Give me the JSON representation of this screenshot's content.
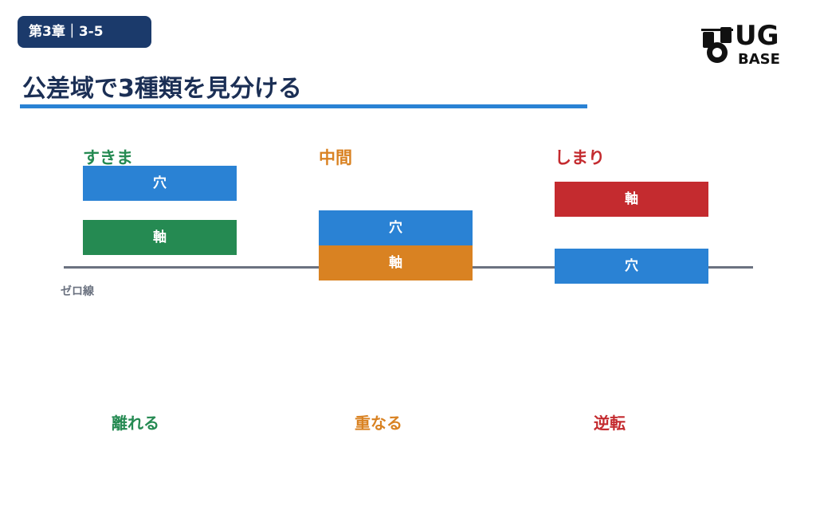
{
  "header": {
    "badge": "第3章｜3-5",
    "title": "公差域で3種類を見分ける",
    "logo": {
      "top": "UG",
      "bottom": "BASE"
    }
  },
  "columns": [
    {
      "label": "すきま",
      "boxes": [
        "穴",
        "軸"
      ],
      "caption": "離れる"
    },
    {
      "label": "中間",
      "boxes": [
        "穴",
        "軸"
      ],
      "caption": "重なる"
    },
    {
      "label": "しまり",
      "boxes": [
        "軸",
        "穴"
      ],
      "caption": "逆転"
    }
  ],
  "zero_line": "ゼロ線"
}
